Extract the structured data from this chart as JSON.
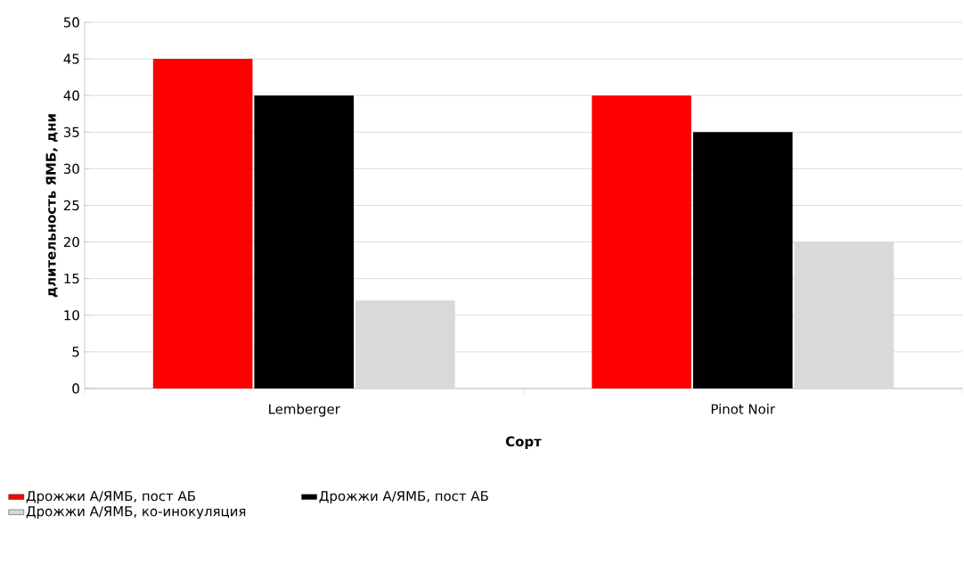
{
  "chart_data": {
    "type": "bar",
    "xlabel": "Сорт",
    "ylabel": "длительность ЯМБ, дни",
    "categories": [
      "Lemberger",
      "Pinot Noir"
    ],
    "series": [
      {
        "name": "Дрожжи A/ЯМБ, пост АБ",
        "color": "#ff0000",
        "values": [
          45,
          40
        ]
      },
      {
        "name": "Дрожжи A/ЯМБ, пост АБ",
        "color": "#000000",
        "values": [
          40,
          35
        ]
      },
      {
        "name": "Дрожжи A/ЯМБ, ко-инокуляция",
        "color": "#d9d9d9",
        "values": [
          12,
          20
        ]
      }
    ],
    "ylim": [
      0,
      50
    ],
    "yticks": [
      0,
      5,
      10,
      15,
      20,
      25,
      30,
      35,
      40,
      45,
      50
    ],
    "grid": "y",
    "legend": "bottom"
  }
}
